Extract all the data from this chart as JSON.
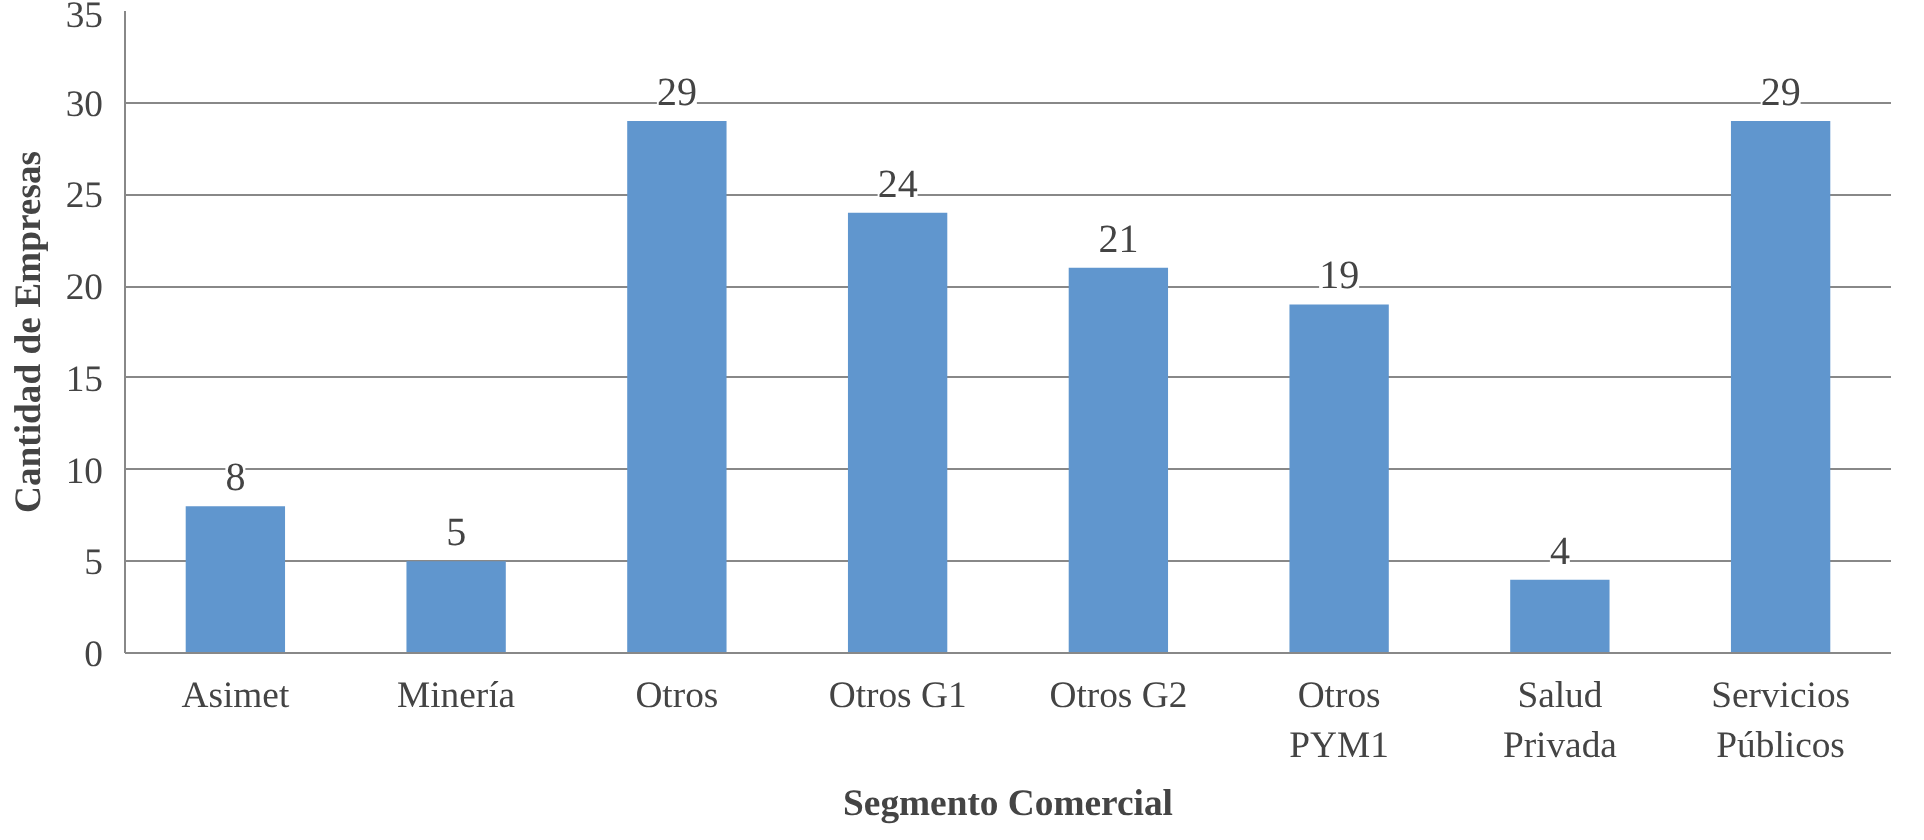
{
  "chart_data": {
    "type": "bar",
    "xlabel": "Segmento Comercial",
    "ylabel": "Cantidad de Empresas",
    "categories": [
      "Asimet",
      "Minería",
      "Otros",
      "Otros G1",
      "Otros G2",
      "Otros\nPYM1",
      "Salud\nPrivada",
      "Servicios\nPúblicos"
    ],
    "values": [
      8,
      5,
      29,
      24,
      21,
      19,
      4,
      29
    ],
    "color": "#6096ce",
    "ylim": [
      0,
      35
    ],
    "yticks": [
      0,
      5,
      10,
      15,
      20,
      25,
      30,
      35
    ],
    "grid": "y",
    "data_labels": true
  }
}
